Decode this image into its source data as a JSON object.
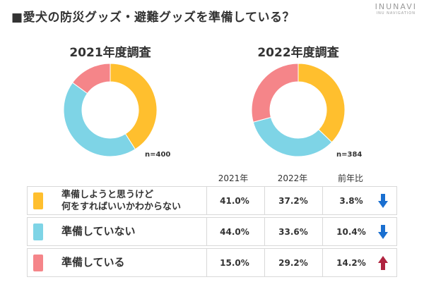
{
  "title": "■愛犬の防災グッズ・避難グッズを準備している？",
  "logo": {
    "main": "INUNAVI",
    "sub": "INU NAVIGATION"
  },
  "chart_data": [
    {
      "type": "pie",
      "title": "2021年度調査",
      "sample": "n=400",
      "categories": [
        "準備しようと思うけど何をすればいいかわからない",
        "準備していない",
        "準備している"
      ],
      "values": [
        41.0,
        44.0,
        15.0
      ],
      "colors": [
        "#FFBF2E",
        "#7ED4E6",
        "#F58589"
      ]
    },
    {
      "type": "pie",
      "title": "2022年度調査",
      "sample": "n=384",
      "categories": [
        "準備しようと思うけど何をすればいいかわからない",
        "準備していない",
        "準備している"
      ],
      "values": [
        37.2,
        33.6,
        29.2
      ],
      "colors": [
        "#FFBF2E",
        "#7ED4E6",
        "#F58589"
      ]
    },
    {
      "type": "table",
      "columns": [
        "2021年",
        "2022年",
        "前年比"
      ],
      "rows": [
        {
          "line1": "準備しようと思うけど",
          "line2": "何をすればいいかわからない",
          "y2021": "41.0%",
          "y2022": "37.2%",
          "change": "3.8%",
          "direction": "down",
          "color": "#FFBF2E"
        },
        {
          "line1": "準備していない",
          "line2": "",
          "y2021": "44.0%",
          "y2022": "33.6%",
          "change": "10.4%",
          "direction": "down",
          "color": "#7ED4E6"
        },
        {
          "line1": "準備している",
          "line2": "",
          "y2021": "15.0%",
          "y2022": "29.2%",
          "change": "14.2%",
          "direction": "up",
          "color": "#F58589"
        }
      ]
    }
  ],
  "arrow_colors": {
    "down": "#1A6FD0",
    "up": "#B0233F"
  }
}
